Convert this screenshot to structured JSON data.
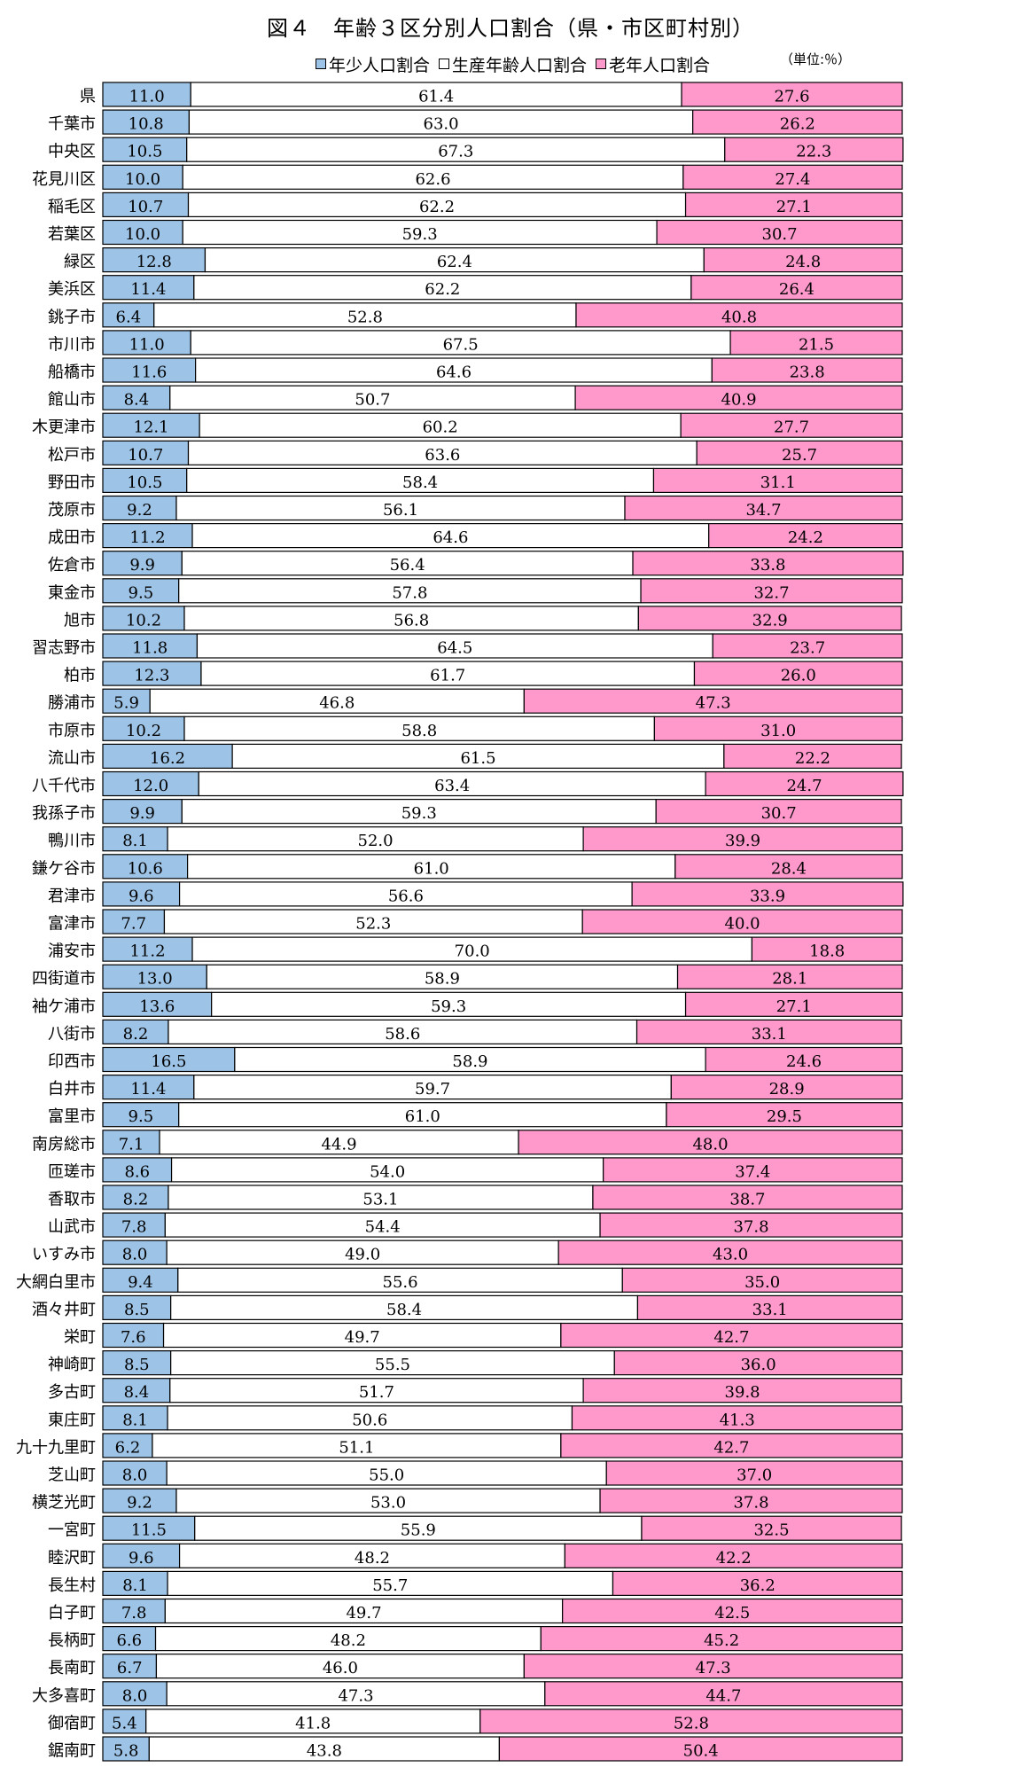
{
  "title": "図４　年齢３区分別人口割合（県・市区町村別）",
  "unit": "（単位:％）",
  "colors": {
    "young": "#9DC3E6",
    "working": "#FFFFFF",
    "elderly": "#FF99CC",
    "border": "#000000"
  },
  "chart_data": {
    "type": "bar",
    "stacked": "horizontal-100-percent",
    "xlim": [
      0,
      100
    ],
    "legend_position": "top",
    "categories": [
      "県",
      "千葉市",
      "中央区",
      "花見川区",
      "稲毛区",
      "若葉区",
      "緑区",
      "美浜区",
      "銚子市",
      "市川市",
      "船橋市",
      "館山市",
      "木更津市",
      "松戸市",
      "野田市",
      "茂原市",
      "成田市",
      "佐倉市",
      "東金市",
      "旭市",
      "習志野市",
      "柏市",
      "勝浦市",
      "市原市",
      "流山市",
      "八千代市",
      "我孫子市",
      "鴨川市",
      "鎌ケ谷市",
      "君津市",
      "富津市",
      "浦安市",
      "四街道市",
      "袖ケ浦市",
      "八街市",
      "印西市",
      "白井市",
      "富里市",
      "南房総市",
      "匝瑳市",
      "香取市",
      "山武市",
      "いすみ市",
      "大網白里市",
      "酒々井町",
      "栄町",
      "神崎町",
      "多古町",
      "東庄町",
      "九十九里町",
      "芝山町",
      "横芝光町",
      "一宮町",
      "睦沢町",
      "長生村",
      "白子町",
      "長柄町",
      "長南町",
      "大多喜町",
      "御宿町",
      "鋸南町"
    ],
    "series": [
      {
        "name": "年少人口割合",
        "values": [
          "11.0",
          "10.8",
          "10.5",
          "10.0",
          "10.7",
          "10.0",
          "12.8",
          "11.4",
          "6.4",
          "11.0",
          "11.6",
          "8.4",
          "12.1",
          "10.7",
          "10.5",
          "9.2",
          "11.2",
          "9.9",
          "9.5",
          "10.2",
          "11.8",
          "12.3",
          "5.9",
          "10.2",
          "16.2",
          "12.0",
          "9.9",
          "8.1",
          "10.6",
          "9.6",
          "7.7",
          "11.2",
          "13.0",
          "13.6",
          "8.2",
          "16.5",
          "11.4",
          "9.5",
          "7.1",
          "8.6",
          "8.2",
          "7.8",
          "8.0",
          "9.4",
          "8.5",
          "7.6",
          "8.5",
          "8.4",
          "8.1",
          "6.2",
          "8.0",
          "9.2",
          "11.5",
          "9.6",
          "8.1",
          "7.8",
          "6.6",
          "6.7",
          "8.0",
          "5.4",
          "5.8"
        ]
      },
      {
        "name": "生産年齢人口割合",
        "values": [
          "61.4",
          "63.0",
          "67.3",
          "62.6",
          "62.2",
          "59.3",
          "62.4",
          "62.2",
          "52.8",
          "67.5",
          "64.6",
          "50.7",
          "60.2",
          "63.6",
          "58.4",
          "56.1",
          "64.6",
          "56.4",
          "57.8",
          "56.8",
          "64.5",
          "61.7",
          "46.8",
          "58.8",
          "61.5",
          "63.4",
          "59.3",
          "52.0",
          "61.0",
          "56.6",
          "52.3",
          "70.0",
          "58.9",
          "59.3",
          "58.6",
          "58.9",
          "59.7",
          "61.0",
          "44.9",
          "54.0",
          "53.1",
          "54.4",
          "49.0",
          "55.6",
          "58.4",
          "49.7",
          "55.5",
          "51.7",
          "50.6",
          "51.1",
          "55.0",
          "53.0",
          "55.9",
          "48.2",
          "55.7",
          "49.7",
          "48.2",
          "46.0",
          "47.3",
          "41.8",
          "43.8"
        ]
      },
      {
        "name": "老年人口割合",
        "values": [
          "27.6",
          "26.2",
          "22.3",
          "27.4",
          "27.1",
          "30.7",
          "24.8",
          "26.4",
          "40.8",
          "21.5",
          "23.8",
          "40.9",
          "27.7",
          "25.7",
          "31.1",
          "34.7",
          "24.2",
          "33.8",
          "32.7",
          "32.9",
          "23.7",
          "26.0",
          "47.3",
          "31.0",
          "22.2",
          "24.7",
          "30.7",
          "39.9",
          "28.4",
          "33.9",
          "40.0",
          "18.8",
          "28.1",
          "27.1",
          "33.1",
          "24.6",
          "28.9",
          "29.5",
          "48.0",
          "37.4",
          "38.7",
          "37.8",
          "43.0",
          "35.0",
          "33.1",
          "42.7",
          "36.0",
          "39.8",
          "41.3",
          "42.7",
          "37.0",
          "37.8",
          "32.5",
          "42.2",
          "36.2",
          "42.5",
          "45.2",
          "47.3",
          "44.7",
          "52.8",
          "50.4"
        ]
      }
    ]
  }
}
